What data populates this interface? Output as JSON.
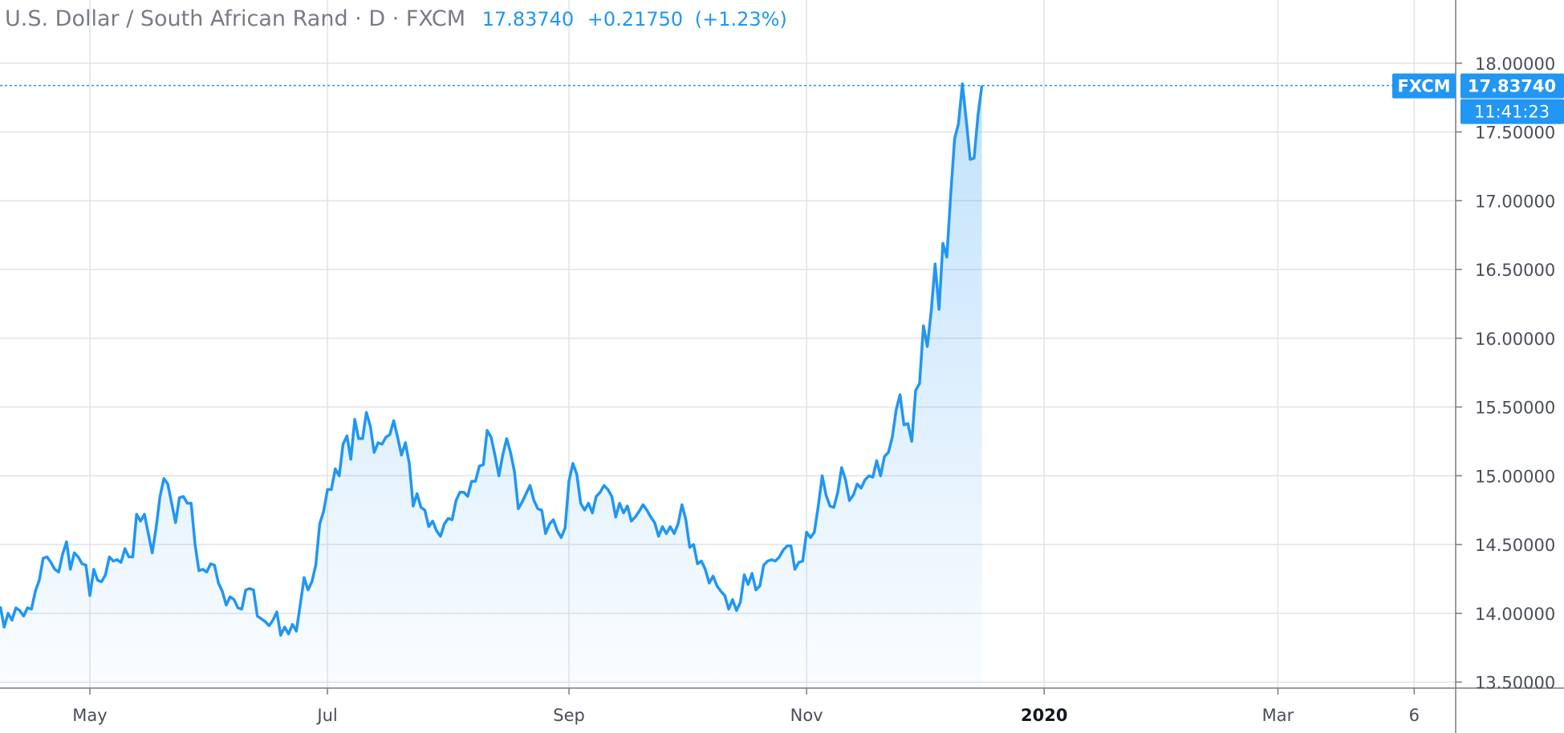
{
  "header": {
    "symbol": "U.S. Dollar / South African Rand · D · FXCM",
    "last": "17.83740",
    "change": "+0.21750",
    "change_pct": "(+1.23%)"
  },
  "badges": {
    "source": "FXCM",
    "price": "17.83740",
    "countdown": "11:41:23"
  },
  "colors": {
    "line": "#2196f3",
    "grid": "#e0e3eb",
    "badge": "#2196f3"
  },
  "chart_data": {
    "type": "area",
    "title": "U.S. Dollar / South African Rand · D · FXCM",
    "ylim": [
      13.5,
      18.25
    ],
    "grid": true,
    "y_ticks": [
      "18.00000",
      "17.50000",
      "17.00000",
      "16.50000",
      "16.00000",
      "15.50000",
      "15.00000",
      "14.50000",
      "14.00000",
      "13.50000"
    ],
    "x_ticks": [
      {
        "label": "May",
        "day": 16
      },
      {
        "label": "Jul",
        "day": 77
      },
      {
        "label": "Sep",
        "day": 139
      },
      {
        "label": "Nov",
        "day": 200
      },
      {
        "label": "2020",
        "day": 261,
        "bold": true
      },
      {
        "label": "Mar",
        "day": 321
      },
      {
        "label": "6",
        "day": 356
      }
    ],
    "x_range": [
      -7,
      363
    ],
    "last_value": 17.8374,
    "series": [
      {
        "values": [
          [
            -7,
            14.05
          ],
          [
            -6,
            13.9
          ],
          [
            -5,
            14.0
          ],
          [
            -4,
            13.95
          ],
          [
            -3,
            14.04
          ],
          [
            -2,
            14.02
          ],
          [
            -1,
            13.98
          ],
          [
            0,
            14.04
          ],
          [
            1,
            14.03
          ],
          [
            2,
            14.16
          ],
          [
            3,
            14.24
          ],
          [
            4,
            14.4
          ],
          [
            5,
            14.41
          ],
          [
            6,
            14.37
          ],
          [
            7,
            14.32
          ],
          [
            8,
            14.3
          ],
          [
            9,
            14.43
          ],
          [
            10,
            14.52
          ],
          [
            11,
            14.32
          ],
          [
            12,
            14.44
          ],
          [
            13,
            14.41
          ],
          [
            14,
            14.36
          ],
          [
            15,
            14.35
          ],
          [
            16,
            14.13
          ],
          [
            17,
            14.32
          ],
          [
            18,
            14.24
          ],
          [
            19,
            14.23
          ],
          [
            20,
            14.28
          ],
          [
            21,
            14.41
          ],
          [
            22,
            14.38
          ],
          [
            23,
            14.39
          ],
          [
            24,
            14.37
          ],
          [
            25,
            14.47
          ],
          [
            26,
            14.41
          ],
          [
            27,
            14.41
          ],
          [
            28,
            14.72
          ],
          [
            29,
            14.67
          ],
          [
            30,
            14.72
          ],
          [
            31,
            14.58
          ],
          [
            32,
            14.44
          ],
          [
            33,
            14.62
          ],
          [
            34,
            14.85
          ],
          [
            35,
            14.98
          ],
          [
            36,
            14.94
          ],
          [
            37,
            14.8
          ],
          [
            38,
            14.66
          ],
          [
            39,
            14.84
          ],
          [
            40,
            14.85
          ],
          [
            41,
            14.8
          ],
          [
            42,
            14.8
          ],
          [
            43,
            14.5
          ],
          [
            44,
            14.31
          ],
          [
            45,
            14.32
          ],
          [
            46,
            14.3
          ],
          [
            47,
            14.36
          ],
          [
            48,
            14.35
          ],
          [
            49,
            14.22
          ],
          [
            50,
            14.16
          ],
          [
            51,
            14.06
          ],
          [
            52,
            14.12
          ],
          [
            53,
            14.1
          ],
          [
            54,
            14.04
          ],
          [
            55,
            14.03
          ],
          [
            56,
            14.17
          ],
          [
            57,
            14.18
          ],
          [
            58,
            14.17
          ],
          [
            59,
            13.98
          ],
          [
            60,
            13.96
          ],
          [
            61,
            13.94
          ],
          [
            62,
            13.91
          ],
          [
            63,
            13.95
          ],
          [
            64,
            14.01
          ],
          [
            65,
            13.84
          ],
          [
            66,
            13.9
          ],
          [
            67,
            13.85
          ],
          [
            68,
            13.92
          ],
          [
            69,
            13.87
          ],
          [
            70,
            14.06
          ],
          [
            71,
            14.26
          ],
          [
            72,
            14.17
          ],
          [
            73,
            14.23
          ],
          [
            74,
            14.35
          ],
          [
            75,
            14.65
          ],
          [
            76,
            14.74
          ],
          [
            77,
            14.9
          ],
          [
            78,
            14.9
          ],
          [
            79,
            15.05
          ],
          [
            80,
            15.0
          ],
          [
            81,
            15.23
          ],
          [
            82,
            15.29
          ],
          [
            83,
            15.12
          ],
          [
            84,
            15.41
          ],
          [
            85,
            15.27
          ],
          [
            86,
            15.27
          ],
          [
            87,
            15.46
          ],
          [
            88,
            15.36
          ],
          [
            89,
            15.17
          ],
          [
            90,
            15.24
          ],
          [
            91,
            15.23
          ],
          [
            92,
            15.28
          ],
          [
            93,
            15.3
          ],
          [
            94,
            15.4
          ],
          [
            95,
            15.28
          ],
          [
            96,
            15.15
          ],
          [
            97,
            15.24
          ],
          [
            98,
            15.09
          ],
          [
            99,
            14.78
          ],
          [
            100,
            14.87
          ],
          [
            101,
            14.77
          ],
          [
            102,
            14.75
          ],
          [
            103,
            14.63
          ],
          [
            104,
            14.67
          ],
          [
            105,
            14.6
          ],
          [
            106,
            14.56
          ],
          [
            107,
            14.65
          ],
          [
            108,
            14.69
          ],
          [
            109,
            14.68
          ],
          [
            110,
            14.82
          ],
          [
            111,
            14.88
          ],
          [
            112,
            14.88
          ],
          [
            113,
            14.85
          ],
          [
            114,
            14.96
          ],
          [
            115,
            14.96
          ],
          [
            116,
            15.07
          ],
          [
            117,
            15.08
          ],
          [
            118,
            15.33
          ],
          [
            119,
            15.28
          ],
          [
            120,
            15.15
          ],
          [
            121,
            15.0
          ],
          [
            122,
            15.15
          ],
          [
            123,
            15.27
          ],
          [
            124,
            15.17
          ],
          [
            125,
            15.03
          ],
          [
            126,
            14.76
          ],
          [
            127,
            14.81
          ],
          [
            128,
            14.87
          ],
          [
            129,
            14.93
          ],
          [
            130,
            14.82
          ],
          [
            131,
            14.76
          ],
          [
            132,
            14.75
          ],
          [
            133,
            14.58
          ],
          [
            134,
            14.65
          ],
          [
            135,
            14.68
          ],
          [
            136,
            14.6
          ],
          [
            137,
            14.55
          ],
          [
            138,
            14.62
          ],
          [
            139,
            14.96
          ],
          [
            140,
            15.09
          ],
          [
            141,
            15.01
          ],
          [
            142,
            14.8
          ],
          [
            143,
            14.75
          ],
          [
            144,
            14.8
          ],
          [
            145,
            14.73
          ],
          [
            146,
            14.85
          ],
          [
            147,
            14.88
          ],
          [
            148,
            14.93
          ],
          [
            149,
            14.9
          ],
          [
            150,
            14.85
          ],
          [
            151,
            14.7
          ],
          [
            152,
            14.8
          ],
          [
            153,
            14.73
          ],
          [
            154,
            14.78
          ],
          [
            155,
            14.67
          ],
          [
            156,
            14.7
          ],
          [
            157,
            14.74
          ],
          [
            158,
            14.79
          ],
          [
            159,
            14.75
          ],
          [
            160,
            14.7
          ],
          [
            161,
            14.66
          ],
          [
            162,
            14.56
          ],
          [
            163,
            14.63
          ],
          [
            164,
            14.58
          ],
          [
            165,
            14.63
          ],
          [
            166,
            14.58
          ],
          [
            167,
            14.65
          ],
          [
            168,
            14.79
          ],
          [
            169,
            14.68
          ],
          [
            170,
            14.48
          ],
          [
            171,
            14.5
          ],
          [
            172,
            14.36
          ],
          [
            173,
            14.38
          ],
          [
            174,
            14.32
          ],
          [
            175,
            14.22
          ],
          [
            176,
            14.27
          ],
          [
            177,
            14.2
          ],
          [
            178,
            14.16
          ],
          [
            179,
            14.13
          ],
          [
            180,
            14.03
          ],
          [
            181,
            14.1
          ],
          [
            182,
            14.02
          ],
          [
            183,
            14.08
          ],
          [
            184,
            14.28
          ],
          [
            185,
            14.21
          ],
          [
            186,
            14.29
          ],
          [
            187,
            14.17
          ],
          [
            188,
            14.2
          ],
          [
            189,
            14.35
          ],
          [
            190,
            14.38
          ],
          [
            191,
            14.39
          ],
          [
            192,
            14.38
          ],
          [
            193,
            14.41
          ],
          [
            194,
            14.46
          ],
          [
            195,
            14.49
          ],
          [
            196,
            14.49
          ],
          [
            197,
            14.32
          ],
          [
            198,
            14.37
          ],
          [
            199,
            14.38
          ],
          [
            200,
            14.59
          ],
          [
            201,
            14.55
          ],
          [
            202,
            14.59
          ],
          [
            203,
            14.78
          ],
          [
            204,
            15.0
          ],
          [
            205,
            14.86
          ],
          [
            206,
            14.78
          ],
          [
            207,
            14.77
          ],
          [
            208,
            14.88
          ],
          [
            209,
            15.06
          ],
          [
            210,
            14.97
          ],
          [
            211,
            14.82
          ],
          [
            212,
            14.86
          ],
          [
            213,
            14.94
          ],
          [
            214,
            14.91
          ],
          [
            215,
            14.97
          ],
          [
            216,
            15.0
          ],
          [
            217,
            14.99
          ],
          [
            218,
            15.11
          ],
          [
            219,
            15.0
          ],
          [
            220,
            15.14
          ],
          [
            221,
            15.17
          ],
          [
            222,
            15.28
          ],
          [
            223,
            15.48
          ],
          [
            224,
            15.59
          ],
          [
            225,
            15.37
          ],
          [
            226,
            15.38
          ],
          [
            227,
            15.25
          ],
          [
            228,
            15.62
          ],
          [
            229,
            15.67
          ],
          [
            230,
            16.09
          ],
          [
            231,
            15.94
          ],
          [
            232,
            16.2
          ],
          [
            233,
            16.54
          ],
          [
            234,
            16.21
          ],
          [
            235,
            16.69
          ],
          [
            236,
            16.59
          ],
          [
            237,
            17.04
          ],
          [
            238,
            17.45
          ],
          [
            239,
            17.56
          ],
          [
            240,
            17.85
          ],
          [
            241,
            17.58
          ],
          [
            242,
            17.3
          ],
          [
            243,
            17.31
          ],
          [
            244,
            17.62
          ],
          [
            245,
            17.8374
          ]
        ]
      }
    ]
  }
}
